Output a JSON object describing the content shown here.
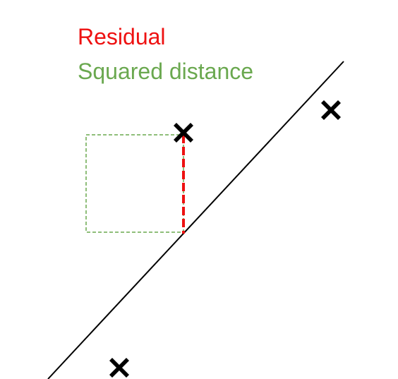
{
  "legend": {
    "residual_label": "Residual",
    "squared_label": "Squared distance"
  },
  "colors": {
    "residual": "#ee1111",
    "squared": "#6aa84f",
    "line": "#000000",
    "markers": "#000000"
  },
  "icons": {
    "data_point": "x-marker-icon"
  }
}
